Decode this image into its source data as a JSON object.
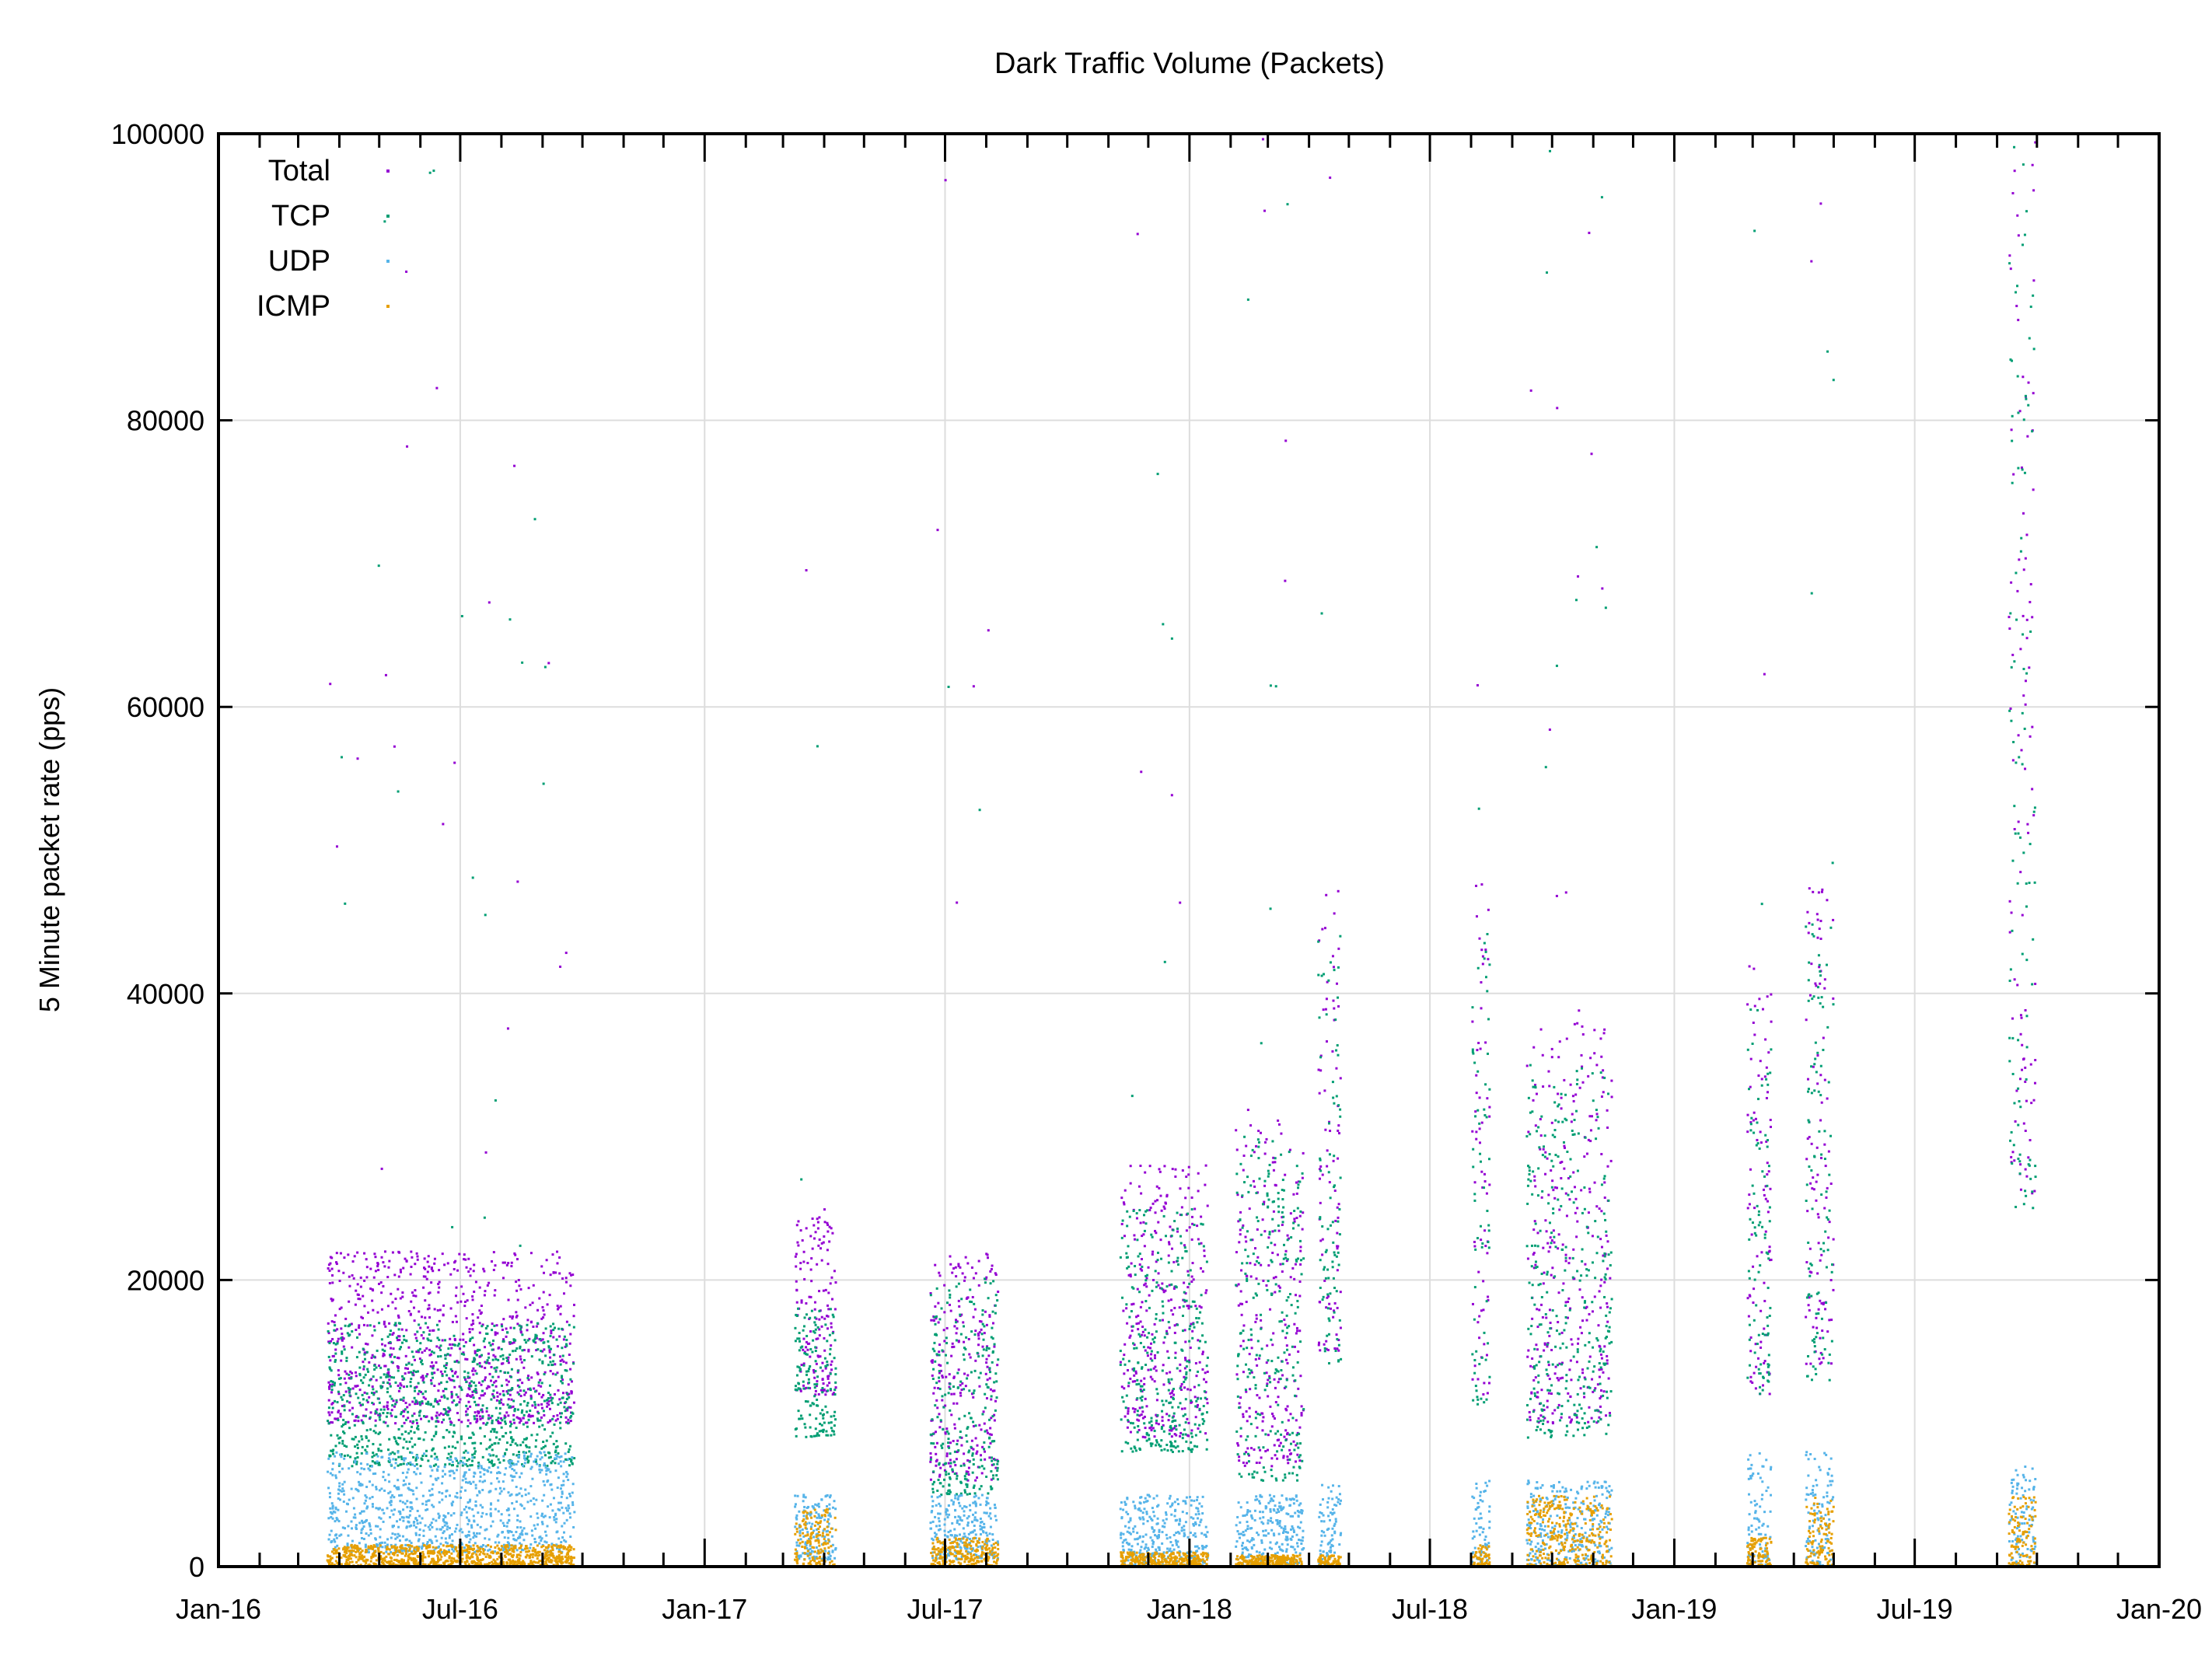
{
  "chart_data": {
    "type": "scatter",
    "title": "Dark Traffic Volume (Packets)",
    "xlabel": "",
    "ylabel": "5 Minute packet rate (pps)",
    "xlim": [
      "2016-01-01",
      "2020-01-01"
    ],
    "ylim": [
      0,
      100000
    ],
    "x_ticks": [
      "Jan-16",
      "Jul-16",
      "Jan-17",
      "Jul-17",
      "Jan-18",
      "Jul-18",
      "Jan-19",
      "Jul-19",
      "Jan-20"
    ],
    "x_tick_dates": [
      "2016-01-01",
      "2016-07-01",
      "2017-01-01",
      "2017-07-01",
      "2018-01-01",
      "2018-07-01",
      "2019-01-01",
      "2019-07-01",
      "2020-01-01"
    ],
    "y_ticks": [
      0,
      20000,
      40000,
      60000,
      80000,
      100000
    ],
    "grid": true,
    "legend_placement": "top-left",
    "series": [
      {
        "name": "Total",
        "color": "#9400d3"
      },
      {
        "name": "TCP",
        "color": "#009e73"
      },
      {
        "name": "UDP",
        "color": "#56b4e9"
      },
      {
        "name": "ICMP",
        "color": "#e69f00"
      }
    ],
    "periods": [
      {
        "start": "2016-03-23",
        "end": "2016-09-25",
        "Total": [
          10000,
          22000
        ],
        "TCP": [
          7000,
          17000
        ],
        "UDP": [
          1000,
          8000
        ],
        "ICMP": [
          0,
          1500
        ]
      },
      {
        "start": "2017-03-10",
        "end": "2017-04-10",
        "Total": [
          12000,
          25000
        ],
        "TCP": [
          9000,
          18000
        ],
        "UDP": [
          500,
          5000
        ],
        "ICMP": [
          0,
          4000
        ]
      },
      {
        "start": "2017-06-20",
        "end": "2017-08-10",
        "Total": [
          6000,
          22000
        ],
        "TCP": [
          5000,
          20000
        ],
        "UDP": [
          500,
          5000
        ],
        "ICMP": [
          0,
          2000
        ]
      },
      {
        "start": "2017-11-10",
        "end": "2018-01-15",
        "Total": [
          9000,
          28000
        ],
        "TCP": [
          8000,
          25000
        ],
        "UDP": [
          0,
          5000
        ],
        "ICMP": [
          0,
          1000
        ]
      },
      {
        "start": "2018-02-05",
        "end": "2018-03-28",
        "Total": [
          7000,
          32000
        ],
        "TCP": [
          6000,
          30000
        ],
        "UDP": [
          0,
          5000
        ],
        "ICMP": [
          0,
          800
        ]
      },
      {
        "start": "2018-04-08",
        "end": "2018-04-25",
        "Total": [
          15000,
          48000
        ],
        "TCP": [
          14000,
          45000
        ],
        "UDP": [
          0,
          6000
        ],
        "ICMP": [
          0,
          800
        ]
      },
      {
        "start": "2018-08-02",
        "end": "2018-08-15",
        "Total": [
          12000,
          48000
        ],
        "TCP": [
          11000,
          45000
        ],
        "UDP": [
          0,
          6000
        ],
        "ICMP": [
          0,
          1500
        ]
      },
      {
        "start": "2018-09-12",
        "end": "2018-11-15",
        "Total": [
          10000,
          38000
        ],
        "TCP": [
          9000,
          35000
        ],
        "UDP": [
          0,
          6000
        ],
        "ICMP": [
          0,
          5000
        ]
      },
      {
        "start": "2019-02-25",
        "end": "2019-03-15",
        "Total": [
          12000,
          42000
        ],
        "TCP": [
          12000,
          40000
        ],
        "UDP": [
          0,
          8000
        ],
        "ICMP": [
          0,
          2000
        ]
      },
      {
        "start": "2019-04-10",
        "end": "2019-05-01",
        "Total": [
          14000,
          48000
        ],
        "TCP": [
          13000,
          45000
        ],
        "UDP": [
          0,
          8000
        ],
        "ICMP": [
          0,
          5000
        ]
      },
      {
        "start": "2019-09-10",
        "end": "2019-09-30",
        "Total": [
          26000,
          98000
        ],
        "TCP": [
          25000,
          95000
        ],
        "UDP": [
          0,
          7000
        ],
        "ICMP": [
          0,
          5000
        ]
      }
    ]
  }
}
